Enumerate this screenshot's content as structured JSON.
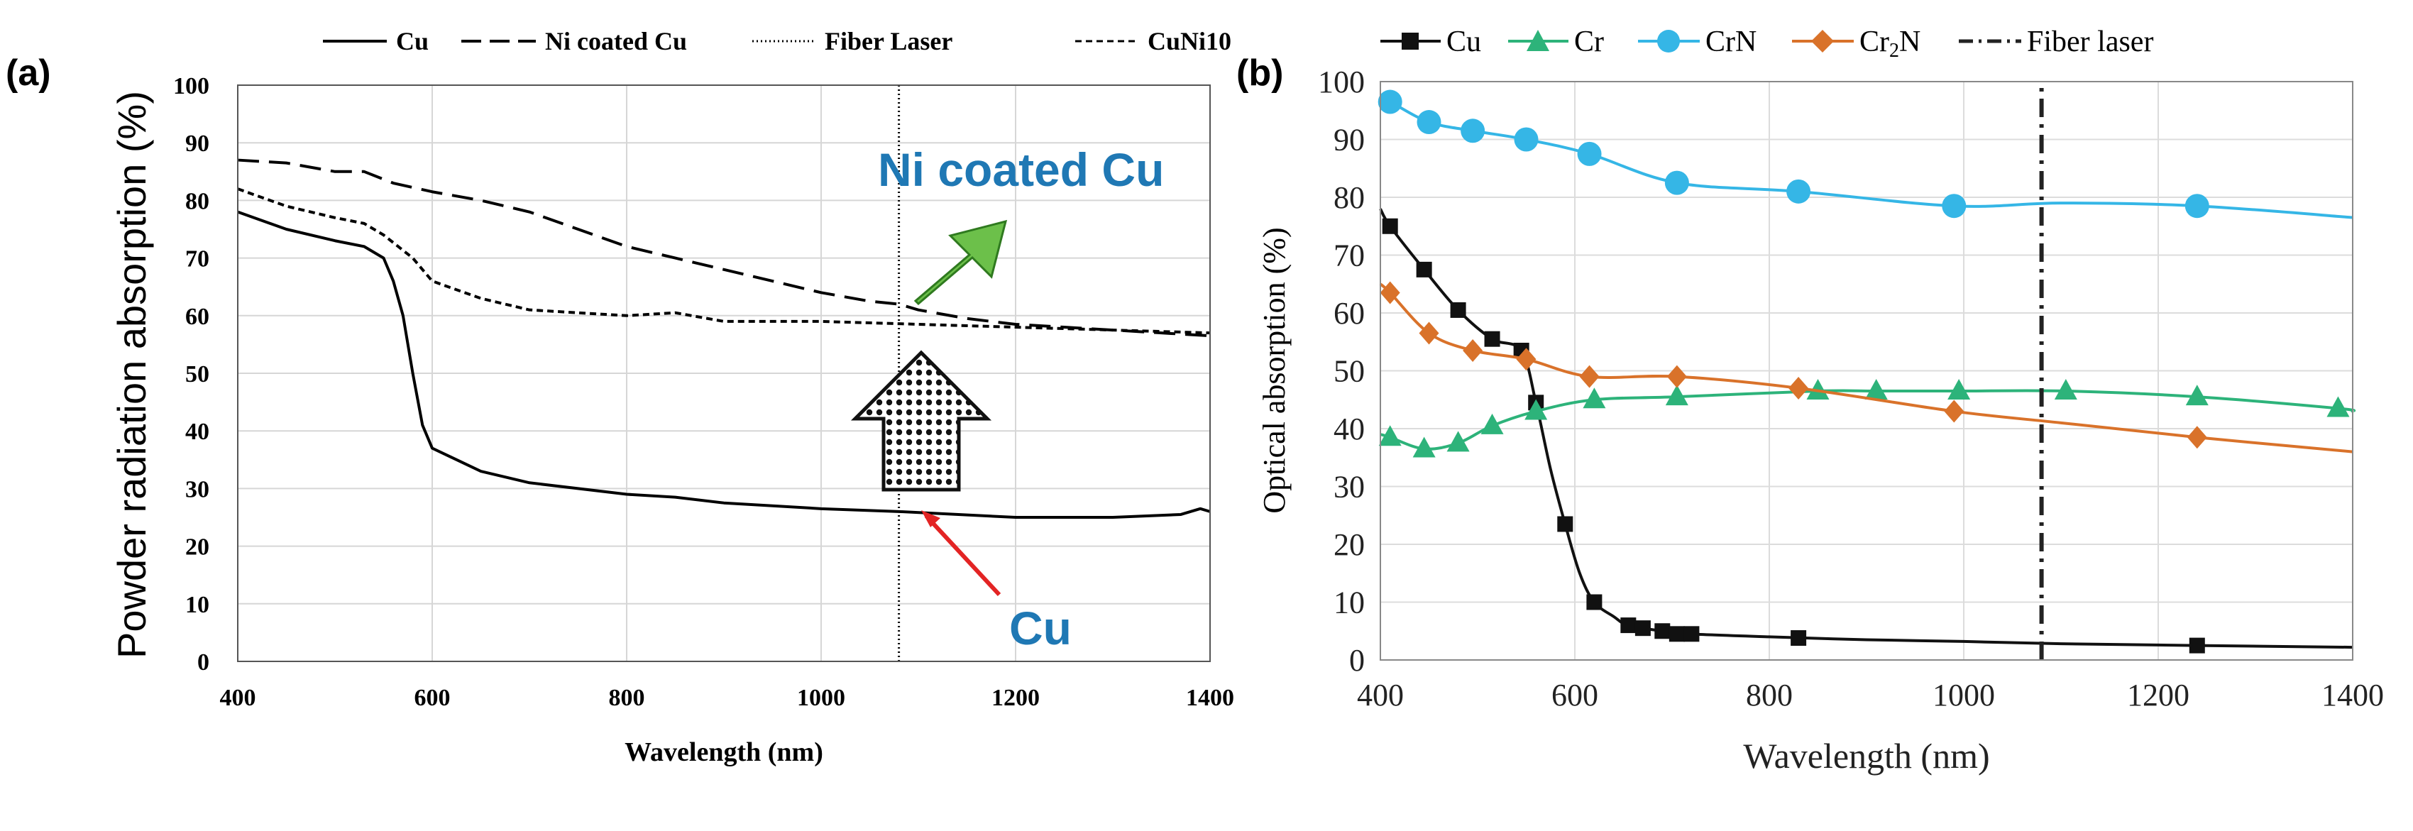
{
  "figure": {
    "panel_a_label": "(a)",
    "panel_b_label": "(b)"
  },
  "chart_data": [
    {
      "type": "line",
      "panel": "(a)",
      "xlabel": "Wavelength (nm)",
      "ylabel": "Powder radiation absorption (%)",
      "xlim": [
        400,
        1400
      ],
      "ylim": [
        0,
        100
      ],
      "xticks": [
        400,
        600,
        800,
        1000,
        1200,
        1400
      ],
      "yticks": [
        0,
        10,
        20,
        30,
        40,
        50,
        60,
        70,
        80,
        90,
        100
      ],
      "grid": true,
      "legend_position": "top",
      "legend": [
        "Cu",
        "Ni coated Cu",
        "Fiber Laser",
        "CuNi10"
      ],
      "series": [
        {
          "name": "Cu",
          "style": "solid",
          "x": [
            400,
            450,
            500,
            530,
            550,
            560,
            570,
            580,
            590,
            600,
            650,
            700,
            800,
            850,
            900,
            1000,
            1080,
            1200,
            1300,
            1370,
            1390,
            1400
          ],
          "y": [
            78,
            75,
            73,
            72,
            70,
            66,
            60,
            50,
            41,
            37,
            33,
            31,
            29,
            28.5,
            27.5,
            26.5,
            26,
            25,
            25,
            25.5,
            26.5,
            26
          ]
        },
        {
          "name": "Ni coated Cu",
          "style": "long-dash",
          "x": [
            400,
            450,
            500,
            530,
            560,
            600,
            650,
            700,
            750,
            800,
            850,
            900,
            950,
            1000,
            1050,
            1080,
            1100,
            1150,
            1200,
            1250,
            1300,
            1350,
            1400
          ],
          "y": [
            87,
            86.5,
            85,
            85,
            83,
            81.5,
            80,
            78,
            75,
            72,
            70,
            68,
            66,
            64,
            62.5,
            62,
            61,
            59.5,
            58.5,
            58,
            57.5,
            57,
            56.5
          ]
        },
        {
          "name": "CuNi10",
          "style": "short-dash",
          "x": [
            400,
            450,
            500,
            530,
            550,
            580,
            600,
            650,
            700,
            800,
            850,
            900,
            1000,
            1100,
            1200,
            1300,
            1400
          ],
          "y": [
            82,
            79,
            77,
            76,
            74,
            70,
            66,
            63,
            61,
            60,
            60.5,
            59,
            59,
            58.5,
            58,
            57.5,
            57
          ]
        },
        {
          "name": "Fiber Laser",
          "style": "dotted-vertical",
          "x": [
            1080,
            1080
          ],
          "y": [
            0,
            100
          ]
        }
      ],
      "annotations": [
        {
          "text": "Ni coated Cu",
          "color": "#1f78b4"
        },
        {
          "text": "Cu",
          "color": "#1f78b4"
        }
      ]
    },
    {
      "type": "line",
      "panel": "(b)",
      "xlabel": "Wavelength (nm)",
      "ylabel": "Optical absorption (%)",
      "xlim": [
        400,
        1400
      ],
      "ylim": [
        0,
        100
      ],
      "xticks": [
        400,
        600,
        800,
        1000,
        1200,
        1400
      ],
      "yticks": [
        0,
        10,
        20,
        30,
        40,
        50,
        60,
        70,
        80,
        90,
        100
      ],
      "grid": true,
      "legend_position": "top",
      "legend_labels": {
        "Cu": "Cu",
        "Cr": "Cr",
        "CrN": "CrN",
        "Cr2N_main": "Cr",
        "Cr2N_sub": "2",
        "Cr2N_tail": "N",
        "Fiber": "Fiber laser"
      },
      "series": [
        {
          "name": "Cu",
          "color": "#111111",
          "marker": "square",
          "x": [
            410,
            445,
            480,
            515,
            545,
            560,
            590,
            620,
            655,
            670,
            690,
            705,
            720,
            830,
            1240
          ],
          "y": [
            75,
            67.5,
            60.5,
            55.5,
            53.5,
            44.5,
            23.5,
            10,
            6,
            5.5,
            5,
            4.5,
            4.5,
            3.8,
            2.5
          ],
          "curve_x": [
            400,
            410,
            445,
            480,
            515,
            545,
            560,
            575,
            590,
            605,
            620,
            640,
            655,
            690,
            720,
            800,
            900,
            1000,
            1100,
            1240,
            1400
          ],
          "curve_y": [
            78,
            75,
            67.5,
            60.5,
            55.5,
            53.5,
            44.5,
            33,
            23.5,
            15,
            10,
            7.5,
            6,
            5,
            4.5,
            4,
            3.5,
            3.2,
            2.8,
            2.5,
            2.2
          ]
        },
        {
          "name": "Cr",
          "color": "#2db37a",
          "marker": "triangle",
          "x": [
            410,
            445,
            480,
            515,
            560,
            620,
            705,
            850,
            910,
            995,
            1105,
            1240,
            1385
          ],
          "y": [
            38.5,
            36.5,
            37.5,
            40.5,
            43,
            45,
            45.5,
            46.5,
            46.5,
            46.5,
            46.5,
            45.5,
            43.5
          ],
          "curve_x": [
            400,
            410,
            445,
            480,
            515,
            560,
            620,
            705,
            850,
            910,
            995,
            1105,
            1240,
            1385,
            1400
          ],
          "curve_y": [
            39,
            38.5,
            36.5,
            37.5,
            40.5,
            43,
            45,
            45.5,
            46.5,
            46.5,
            46.5,
            46.5,
            45.5,
            43.5,
            43
          ]
        },
        {
          "name": "CrN",
          "color": "#35b6e6",
          "marker": "circle",
          "x": [
            410,
            450,
            495,
            550,
            615,
            705,
            830,
            990,
            1240
          ],
          "y": [
            96.5,
            93,
            91.5,
            90,
            87.5,
            82.5,
            81,
            78.5,
            78.5
          ],
          "curve_x": [
            400,
            410,
            450,
            495,
            550,
            615,
            705,
            830,
            990,
            1100,
            1240,
            1400
          ],
          "curve_y": [
            97,
            96.5,
            93,
            91.5,
            90,
            87.5,
            82.5,
            81,
            78.5,
            79,
            78.5,
            76.5
          ]
        },
        {
          "name": "Cr2N",
          "color": "#d9722a",
          "marker": "diamond",
          "x": [
            410,
            450,
            495,
            550,
            615,
            705,
            830,
            990,
            1240
          ],
          "y": [
            63.5,
            56.5,
            53.5,
            52,
            49,
            49,
            47,
            43,
            38.5
          ],
          "curve_x": [
            400,
            410,
            450,
            495,
            550,
            615,
            705,
            830,
            990,
            1100,
            1240,
            1400
          ],
          "curve_y": [
            65,
            63.5,
            56.5,
            53.5,
            52,
            49,
            49,
            47,
            43,
            41,
            38.5,
            36
          ]
        },
        {
          "name": "Fiber laser",
          "color": "#222222",
          "marker": "none",
          "style": "dash-dot-vertical",
          "x": [
            1080,
            1080
          ],
          "y": [
            0,
            100
          ]
        }
      ]
    }
  ]
}
